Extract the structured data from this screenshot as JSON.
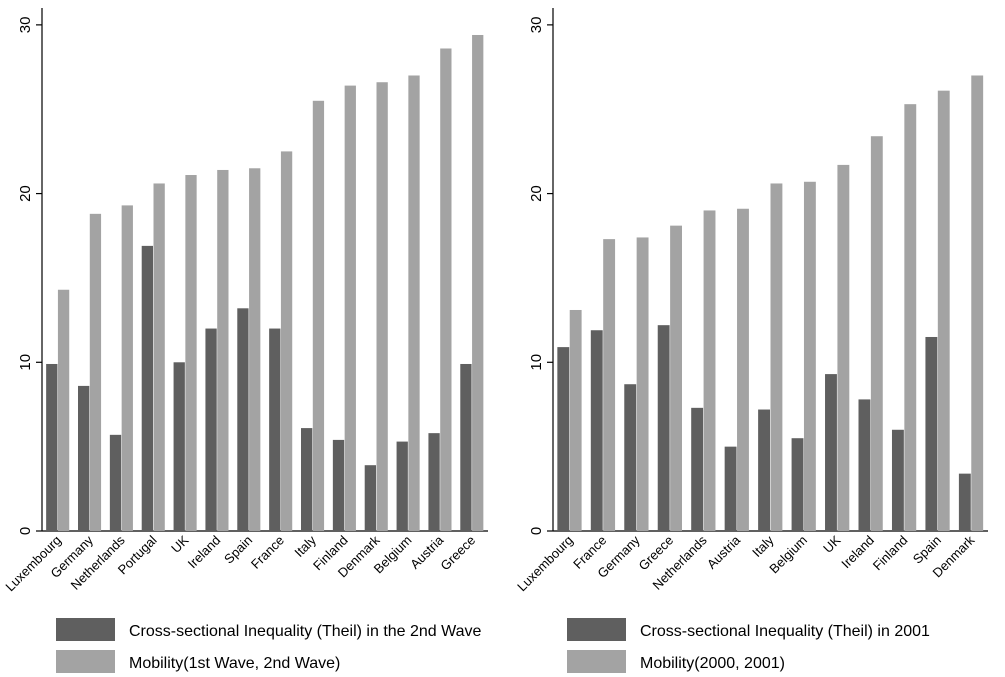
{
  "chart_data": [
    {
      "type": "bar",
      "categories": [
        "Luxembourg",
        "Germany",
        "Netherlands",
        "Portugal",
        "UK",
        "Ireland",
        "Spain",
        "France",
        "Italy",
        "Finland",
        "Denmark",
        "Belgium",
        "Austria",
        "Greece"
      ],
      "series": [
        {
          "name": "Cross-sectional Inequality (Theil) in the 2nd Wave",
          "color": "#5f5f5f",
          "values": [
            9.9,
            8.6,
            5.7,
            16.9,
            10.0,
            12.0,
            13.2,
            12.0,
            6.1,
            5.4,
            3.9,
            5.3,
            5.8,
            9.9
          ]
        },
        {
          "name": "Mobility(1st Wave, 2nd Wave)",
          "color": "#a3a3a3",
          "values": [
            14.3,
            18.8,
            19.3,
            20.6,
            21.1,
            21.4,
            21.5,
            22.5,
            25.5,
            26.4,
            26.6,
            27.0,
            28.6,
            29.4
          ]
        }
      ],
      "yticks": [
        "0",
        "10",
        "20",
        "30"
      ],
      "ylim": [
        0,
        31
      ],
      "legend": "bottom"
    },
    {
      "type": "bar",
      "categories": [
        "Luxembourg",
        "France",
        "Germany",
        "Greece",
        "Netherlands",
        "Austria",
        "Italy",
        "Belgium",
        "UK",
        "Ireland",
        "Finland",
        "Spain",
        "Denmark"
      ],
      "series": [
        {
          "name": "Cross-sectional Inequality (Theil) in 2001",
          "color": "#5f5f5f",
          "values": [
            10.9,
            11.9,
            8.7,
            12.2,
            7.3,
            5.0,
            7.2,
            5.5,
            9.3,
            7.8,
            6.0,
            11.5,
            3.4
          ]
        },
        {
          "name": "Mobility(2000, 2001)",
          "color": "#a3a3a3",
          "values": [
            13.1,
            17.3,
            17.4,
            18.1,
            19.0,
            19.1,
            20.6,
            20.7,
            21.7,
            23.4,
            25.3,
            26.1,
            27.0
          ]
        }
      ],
      "yticks": [
        "0",
        "10",
        "20",
        "30"
      ],
      "ylim": [
        0,
        31
      ],
      "legend": "bottom"
    }
  ]
}
